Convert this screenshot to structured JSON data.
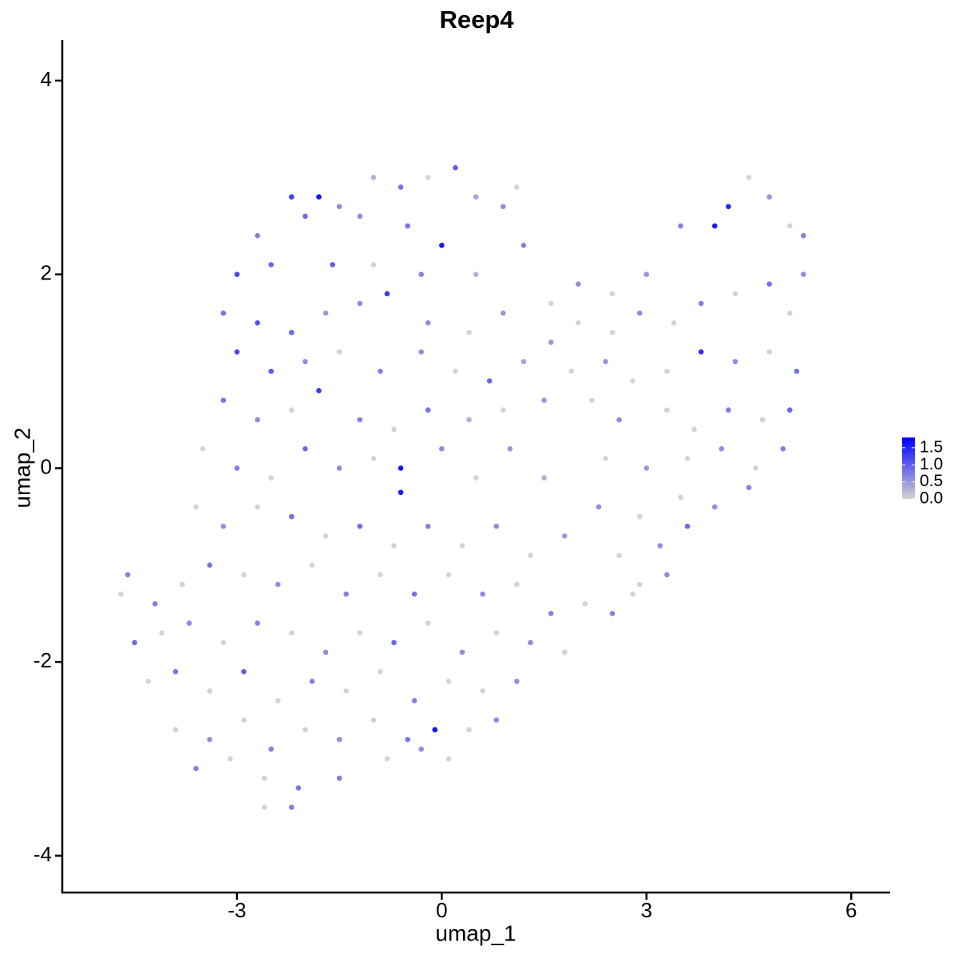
{
  "chart_data": {
    "type": "scatter",
    "title": "Reep4",
    "x_label": "umap_1",
    "y_label": "umap_2",
    "xlim": [
      -5.56,
      6.57
    ],
    "ylim": [
      -4.38,
      4.42
    ],
    "xticks": [
      -3,
      0,
      3,
      6
    ],
    "yticks": [
      -4,
      -2,
      0,
      2,
      4
    ],
    "color_low": "#d3d3d3",
    "color_high": "#0000ff",
    "color_lim": [
      0,
      1.8
    ],
    "color_ticks": [
      {
        "value": 0,
        "label": "0.0"
      },
      0.5,
      {
        "value": 1,
        "label": "1.0"
      },
      1.5
    ],
    "x": [
      -2.2,
      -1.8,
      -1.5,
      -1.0,
      -0.6,
      -0.2,
      0.2,
      0.5,
      0.9,
      1.1,
      0.0,
      -0.5,
      -1.2,
      -2.0,
      -2.7,
      -3.0,
      -2.5,
      -1.6,
      -1.0,
      -0.3,
      0.5,
      1.2,
      -3.2,
      -2.7,
      -2.2,
      -1.7,
      -1.2,
      -0.8,
      -0.2,
      0.4,
      0.9,
      -3.0,
      -2.5,
      -2.0,
      -1.5,
      -0.9,
      -0.3,
      0.2,
      0.7,
      1.2,
      -3.2,
      -2.7,
      -2.2,
      -1.8,
      -1.2,
      -0.7,
      -0.2,
      0.4,
      0.9,
      1.5,
      -3.5,
      -3.0,
      -2.5,
      -2.0,
      -1.5,
      -1.0,
      -0.6,
      -0.6,
      0.0,
      0.5,
      1.0,
      1.5,
      -3.6,
      -3.2,
      -2.7,
      -2.2,
      -1.7,
      -1.2,
      -0.7,
      -0.2,
      0.3,
      0.8,
      1.3,
      1.8,
      -4.2,
      -3.8,
      -3.4,
      -2.9,
      -2.4,
      -1.9,
      -1.4,
      -0.9,
      -0.4,
      0.1,
      0.6,
      1.1,
      1.6,
      2.1,
      -4.5,
      -4.1,
      -3.7,
      -3.2,
      -2.7,
      -2.2,
      -1.7,
      -1.2,
      -0.7,
      -0.2,
      0.3,
      0.8,
      1.3,
      1.8,
      -4.3,
      -3.9,
      -3.4,
      -2.9,
      -2.4,
      -1.9,
      -1.4,
      -0.9,
      -0.4,
      0.1,
      0.6,
      1.1,
      -3.9,
      -3.4,
      -2.9,
      -2.5,
      -2.0,
      -1.5,
      -1.0,
      -0.5,
      -0.1,
      0.4,
      0.8,
      -3.6,
      -3.1,
      -2.6,
      -2.1,
      -1.5,
      -0.8,
      -0.3,
      0.1,
      -2.6,
      -2.2,
      -4.7,
      -4.6,
      1.6,
      2.0,
      2.5,
      3.0,
      3.5,
      4.0,
      4.2,
      4.5,
      4.8,
      5.1,
      5.3,
      5.3,
      1.6,
      2.0,
      2.5,
      2.9,
      3.4,
      3.8,
      4.3,
      4.8,
      5.1,
      1.9,
      2.4,
      2.8,
      3.3,
      3.8,
      4.3,
      4.8,
      5.2,
      2.2,
      2.6,
      3.3,
      3.7,
      4.2,
      4.7,
      5.1,
      2.4,
      3.0,
      3.6,
      4.1,
      4.6,
      5.0,
      2.3,
      2.9,
      3.5,
      4.0,
      4.5,
      2.6,
      3.2,
      3.6,
      2.9,
      3.3,
      2.5,
      2.8
    ],
    "y": [
      2.8,
      2.8,
      2.7,
      3.0,
      2.9,
      3.0,
      3.1,
      2.8,
      2.7,
      2.9,
      2.3,
      2.5,
      2.6,
      2.6,
      2.4,
      2.0,
      2.1,
      2.1,
      2.1,
      2.0,
      2.0,
      2.3,
      1.6,
      1.5,
      1.4,
      1.6,
      1.7,
      1.8,
      1.5,
      1.4,
      1.6,
      1.2,
      1.0,
      1.1,
      1.2,
      1.0,
      1.2,
      1.0,
      0.9,
      1.1,
      0.7,
      0.5,
      0.6,
      0.8,
      0.5,
      0.4,
      0.6,
      0.5,
      0.6,
      0.7,
      0.2,
      0.0,
      -0.1,
      0.2,
      0.0,
      0.1,
      0.0,
      -0.25,
      0.2,
      -0.1,
      0.2,
      -0.1,
      -0.4,
      -0.6,
      -0.4,
      -0.5,
      -0.7,
      -0.6,
      -0.8,
      -0.6,
      -0.8,
      -0.6,
      -0.9,
      -0.7,
      -1.4,
      -1.2,
      -1.0,
      -1.1,
      -1.2,
      -1.0,
      -1.3,
      -1.1,
      -1.3,
      -1.1,
      -1.3,
      -1.2,
      -1.5,
      -1.4,
      -1.8,
      -1.7,
      -1.6,
      -1.8,
      -1.6,
      -1.7,
      -1.9,
      -1.7,
      -1.8,
      -1.6,
      -1.9,
      -1.7,
      -1.8,
      -1.9,
      -2.2,
      -2.1,
      -2.3,
      -2.1,
      -2.4,
      -2.2,
      -2.3,
      -2.1,
      -2.4,
      -2.2,
      -2.3,
      -2.2,
      -2.7,
      -2.8,
      -2.6,
      -2.9,
      -2.7,
      -2.8,
      -2.6,
      -2.8,
      -2.7,
      -2.7,
      -2.6,
      -3.1,
      -3.0,
      -3.2,
      -3.3,
      -3.2,
      -3.0,
      -2.9,
      -3.0,
      -3.5,
      -3.5,
      -1.3,
      -1.1,
      1.7,
      1.9,
      1.8,
      2.0,
      2.5,
      2.5,
      2.7,
      3.0,
      2.8,
      2.5,
      2.4,
      2.0,
      1.3,
      1.5,
      1.4,
      1.6,
      1.5,
      1.7,
      1.8,
      1.9,
      1.6,
      1.0,
      1.1,
      0.9,
      1.0,
      1.2,
      1.1,
      1.2,
      1.0,
      0.7,
      0.5,
      0.6,
      0.4,
      0.6,
      0.5,
      0.6,
      0.1,
      0.0,
      0.1,
      0.2,
      0.0,
      0.2,
      -0.4,
      -0.5,
      -0.3,
      -0.4,
      -0.2,
      -0.9,
      -0.8,
      -0.6,
      -1.2,
      -1.1,
      -1.5,
      -1.3
    ],
    "expression": [
      1.2,
      1.6,
      0.6,
      0.3,
      0.8,
      0,
      1.0,
      0.4,
      0.6,
      0,
      1.6,
      0.8,
      0.6,
      0.9,
      0.7,
      1.2,
      0.9,
      1.0,
      0,
      0.7,
      0.3,
      0.7,
      0.8,
      1.1,
      0.9,
      0.5,
      0.6,
      1.3,
      0.6,
      0,
      0.5,
      1.2,
      1.0,
      0.6,
      0,
      0.7,
      0.6,
      0,
      0.9,
      0.4,
      0.8,
      0.6,
      0,
      1.3,
      0.7,
      0,
      0.8,
      0.3,
      0,
      0.5,
      0,
      0.7,
      0,
      0.9,
      0.6,
      0,
      1.7,
      1.6,
      0.6,
      0,
      0.5,
      0.3,
      0,
      0.6,
      0,
      0.8,
      0,
      0.9,
      0,
      0.7,
      0,
      0.6,
      0,
      0.5,
      0.7,
      0,
      0.8,
      0,
      0.6,
      0,
      0.7,
      0,
      0.8,
      0,
      0.6,
      0,
      0.7,
      0,
      0.9,
      0,
      0.6,
      0,
      0.7,
      0,
      0.6,
      0,
      0.9,
      0,
      0.6,
      0,
      0.6,
      0,
      0,
      0.8,
      0,
      1.0,
      0,
      0.7,
      0,
      0,
      0.7,
      0,
      0,
      0.6,
      0,
      0.6,
      0,
      0.7,
      0,
      0.6,
      0,
      0.8,
      1.6,
      0,
      0.6,
      0.7,
      0,
      0,
      0.8,
      0.7,
      0,
      0.6,
      0,
      0,
      0.7,
      0,
      0.7,
      0,
      0.6,
      0,
      0.5,
      0.7,
      1.6,
      1.5,
      0,
      0.5,
      0,
      0.7,
      0.6,
      0.5,
      0,
      0,
      0.6,
      0,
      0.7,
      0,
      0.8,
      0,
      0,
      0.5,
      0,
      0,
      1.4,
      0.6,
      0,
      0.8,
      0,
      0.6,
      0,
      0,
      0.7,
      0,
      0.9,
      0,
      0.5,
      0,
      0.6,
      0,
      0.7,
      0.6,
      0,
      0,
      0.6,
      0.7,
      0,
      0.6,
      0.9,
      0,
      0.6,
      0.7,
      0
    ]
  }
}
